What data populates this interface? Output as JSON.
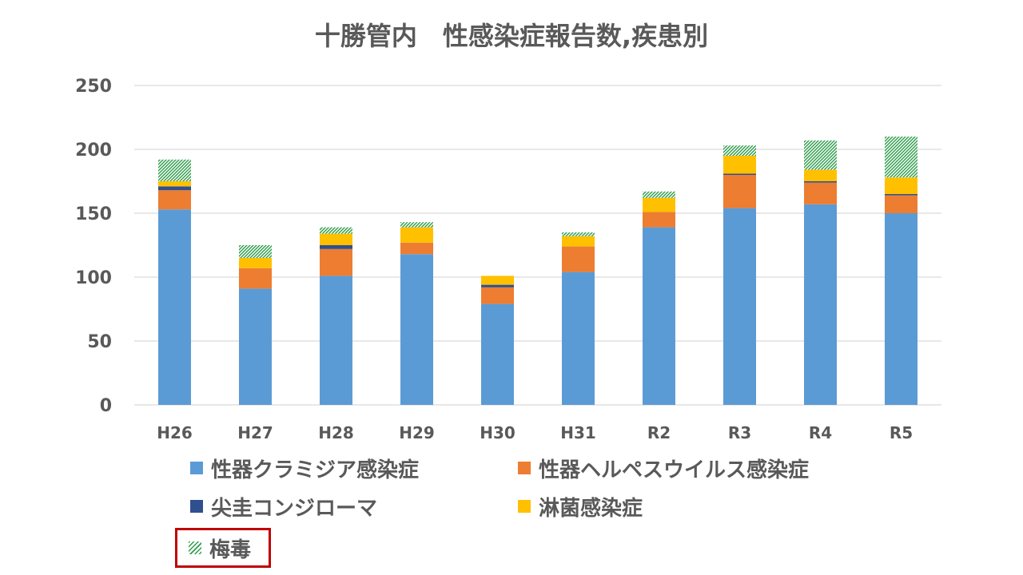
{
  "chart_data": {
    "type": "bar",
    "stacked": true,
    "title": "十勝管内　性感染症報告数,疾患別",
    "xlabel": "",
    "ylabel": "",
    "ylim": [
      0,
      250
    ],
    "yticks": [
      0,
      50,
      100,
      150,
      200,
      250
    ],
    "grid": true,
    "legend_position": "bottom",
    "categories": [
      "H26",
      "H27",
      "H28",
      "H29",
      "H30",
      "H31",
      "R2",
      "R3",
      "R4",
      "R5"
    ],
    "series": [
      {
        "name": "性器クラミジア感染症",
        "color": "#5b9bd5",
        "pattern": "solid",
        "values": [
          153,
          91,
          101,
          118,
          79,
          104,
          139,
          154,
          157,
          150
        ]
      },
      {
        "name": "性器ヘルペスウイルス感染症",
        "color": "#ed7d31",
        "pattern": "solid",
        "values": [
          15,
          16,
          21,
          9,
          13,
          20,
          12,
          26,
          17,
          14
        ]
      },
      {
        "name": "尖圭コンジローマ",
        "color": "#2f4f8f",
        "pattern": "solid",
        "values": [
          3,
          0,
          3,
          0,
          2,
          0,
          0,
          1,
          1,
          1
        ]
      },
      {
        "name": "淋菌感染症",
        "color": "#ffc000",
        "pattern": "solid",
        "values": [
          4,
          8,
          9,
          12,
          7,
          8,
          11,
          14,
          9,
          13
        ]
      },
      {
        "name": "梅毒",
        "color": "#70ad47",
        "pattern": "hatch",
        "values": [
          17,
          10,
          5,
          4,
          0,
          3,
          5,
          8,
          23,
          32
        ]
      }
    ],
    "highlighted_legend": "梅毒",
    "highlight_color": "#c00000"
  }
}
